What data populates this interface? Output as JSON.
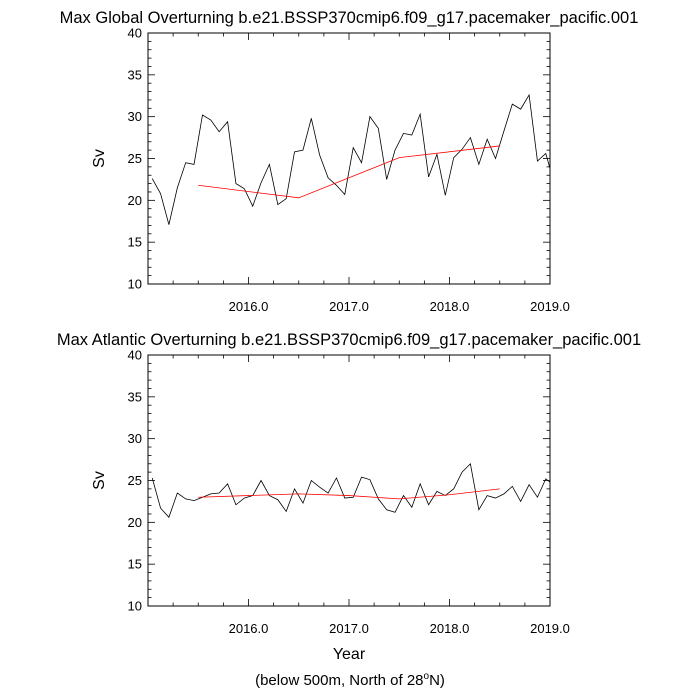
{
  "page": {
    "x_label": "Year",
    "caption_prefix": "(below 500m, North of 28",
    "caption_degree": "o",
    "caption_suffix": "N)"
  },
  "chart_data": [
    {
      "type": "line",
      "title": "Max Global Overturning b.e21.BSSP370cmip6.f09_g17.pacemaker_pacific.001",
      "ylabel": "Sv",
      "xlabel": "",
      "xlim": [
        2015.0,
        2019.0
      ],
      "ylim": [
        10,
        40
      ],
      "x_ticks": [
        2016.0,
        2017.0,
        2018.0,
        2019.0
      ],
      "x_tick_labels": [
        "2016.0",
        "2017.0",
        "2018.0",
        "2019.0"
      ],
      "y_ticks": [
        10,
        15,
        20,
        25,
        30,
        35,
        40
      ],
      "grid": false,
      "series": [
        {
          "color": "#000000",
          "x": [
            2015.042,
            2015.125,
            2015.208,
            2015.292,
            2015.375,
            2015.458,
            2015.542,
            2015.625,
            2015.708,
            2015.792,
            2015.875,
            2015.958,
            2016.042,
            2016.125,
            2016.208,
            2016.292,
            2016.375,
            2016.458,
            2016.542,
            2016.625,
            2016.708,
            2016.792,
            2016.875,
            2016.958,
            2017.042,
            2017.125,
            2017.208,
            2017.292,
            2017.375,
            2017.458,
            2017.542,
            2017.625,
            2017.708,
            2017.792,
            2017.875,
            2017.958,
            2018.042,
            2018.125,
            2018.208,
            2018.292,
            2018.375,
            2018.458,
            2018.542,
            2018.625,
            2018.708,
            2018.792,
            2018.875,
            2018.958,
            2019.042
          ],
          "values": [
            22.6,
            20.8,
            17.1,
            21.5,
            24.5,
            24.3,
            30.2,
            29.6,
            28.2,
            29.4,
            22.0,
            21.4,
            19.3,
            22.1,
            24.3,
            19.5,
            20.2,
            25.8,
            26.0,
            29.8,
            25.4,
            22.7,
            21.8,
            20.7,
            26.3,
            24.5,
            30.0,
            28.6,
            22.5,
            26.0,
            28.0,
            27.8,
            30.3,
            22.8,
            25.5,
            20.6,
            25.1,
            26.1,
            27.5,
            24.3,
            27.3,
            25.0,
            28.3,
            31.5,
            30.9,
            32.6,
            24.7,
            25.6,
            22.0
          ]
        },
        {
          "color": "#ff0000",
          "x": [
            2015.5,
            2016.5,
            2017.5,
            2018.5
          ],
          "values": [
            21.8,
            20.3,
            25.1,
            26.5
          ]
        }
      ]
    },
    {
      "type": "line",
      "title": "Max Atlantic Overturning b.e21.BSSP370cmip6.f09_g17.pacemaker_pacific.001",
      "ylabel": "Sv",
      "xlabel": "Year",
      "xlim": [
        2015.0,
        2019.0
      ],
      "ylim": [
        10,
        40
      ],
      "x_ticks": [
        2016.0,
        2017.0,
        2018.0,
        2019.0
      ],
      "x_tick_labels": [
        "2016.0",
        "2017.0",
        "2018.0",
        "2019.0"
      ],
      "y_ticks": [
        10,
        15,
        20,
        25,
        30,
        35,
        40
      ],
      "grid": false,
      "series": [
        {
          "color": "#000000",
          "x": [
            2015.042,
            2015.125,
            2015.208,
            2015.292,
            2015.375,
            2015.458,
            2015.542,
            2015.625,
            2015.708,
            2015.792,
            2015.875,
            2015.958,
            2016.042,
            2016.125,
            2016.208,
            2016.292,
            2016.375,
            2016.458,
            2016.542,
            2016.625,
            2016.708,
            2016.792,
            2016.875,
            2016.958,
            2017.042,
            2017.125,
            2017.208,
            2017.292,
            2017.375,
            2017.458,
            2017.542,
            2017.625,
            2017.708,
            2017.792,
            2017.875,
            2017.958,
            2018.042,
            2018.125,
            2018.208,
            2018.292,
            2018.375,
            2018.458,
            2018.542,
            2018.625,
            2018.708,
            2018.792,
            2018.875,
            2018.958,
            2019.042
          ],
          "values": [
            25.3,
            21.7,
            20.6,
            23.5,
            22.8,
            22.6,
            23.0,
            23.4,
            23.5,
            24.6,
            22.1,
            22.9,
            23.2,
            25.0,
            23.2,
            22.7,
            21.3,
            24.0,
            22.3,
            25.0,
            24.2,
            23.5,
            25.3,
            22.9,
            23.0,
            25.4,
            25.1,
            22.8,
            21.5,
            21.2,
            23.2,
            21.8,
            24.6,
            22.1,
            23.7,
            23.2,
            24.0,
            26.0,
            27.0,
            21.5,
            23.2,
            22.9,
            23.4,
            24.3,
            22.5,
            24.5,
            23.0,
            25.2,
            24.4
          ]
        },
        {
          "color": "#ff0000",
          "x": [
            2015.5,
            2016.0,
            2016.5,
            2017.0,
            2017.5,
            2018.0,
            2018.5
          ],
          "values": [
            23.0,
            23.2,
            23.4,
            23.2,
            22.8,
            23.3,
            24.0
          ]
        }
      ]
    }
  ]
}
